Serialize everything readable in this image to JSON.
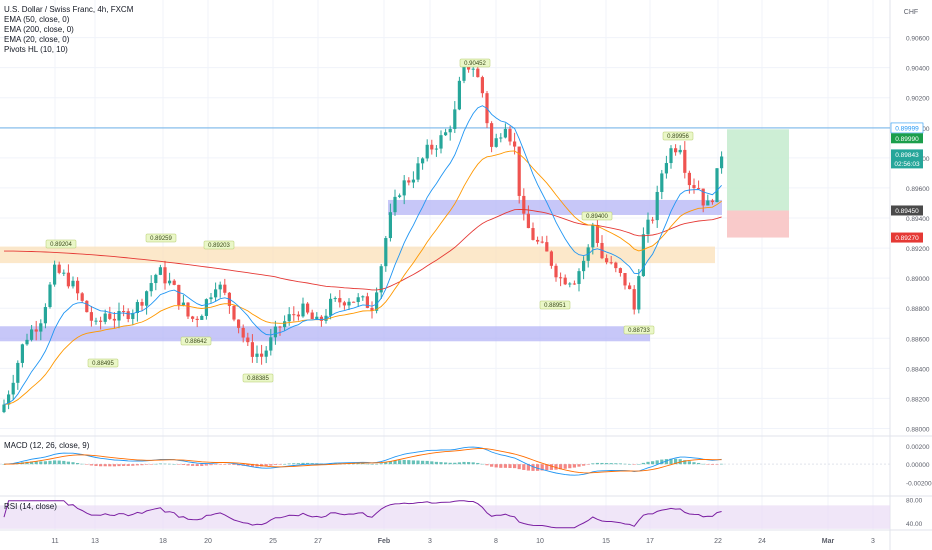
{
  "header": {
    "symbol": "U.S. Dollar / Swiss Franc, 4h, FXCM",
    "currency": "CHF",
    "indicators": [
      "EMA (50, close, 0)",
      "EMA (200, close, 0)",
      "EMA (20, close, 0)",
      "Pivots HL (10, 10)"
    ]
  },
  "macd_label": "MACD (12, 26, close, 9)",
  "rsi_label": "RSI (14, close)",
  "colors": {
    "up": "#26a69a",
    "down": "#ef5350",
    "ema20": "#2196f3",
    "ema50": "#ff9800",
    "ema200": "#e53935",
    "zone_blue": "#b4b4f5",
    "zone_orange": "#fbe0b8",
    "tp_zone": "#c8ecd0",
    "sl_zone": "#f8c4c4",
    "rsi_line": "#7b1fa2"
  },
  "chart_data": [
    {
      "type": "candlestick",
      "title": "U.S. Dollar / Swiss Franc, 4h, FXCM",
      "y_axis": {
        "unit": "CHF",
        "ylim": [
          0.8795,
          0.9085
        ],
        "scale": "linear",
        "ticks": [
          "0.90600",
          "0.90400",
          "0.90200",
          "0.90000",
          "0.89800",
          "0.89600",
          "0.89400",
          "0.89200",
          "0.89000",
          "0.88800",
          "0.88600",
          "0.88400",
          "0.88200",
          "0.88000"
        ]
      },
      "x_axis": {
        "ticks": [
          "11",
          "13",
          "18",
          "20",
          "25",
          "27",
          "Feb",
          "3",
          "8",
          "10",
          "15",
          "17",
          "22",
          "24",
          "Mar",
          "3"
        ]
      },
      "grid": true,
      "price_labels": [
        {
          "text": "0.89999",
          "kind": "horizontal-line"
        },
        {
          "text": "0.89990",
          "kind": "take-profit"
        },
        {
          "text": "0.89843",
          "kind": "last-price"
        },
        {
          "text": "02:56:03",
          "kind": "countdown"
        },
        {
          "text": "0.89450",
          "kind": "entry"
        },
        {
          "text": "0.89270",
          "kind": "stop-loss"
        }
      ],
      "pivot_labels": [
        "0.89204",
        "0.89259",
        "0.89203",
        "0.88495",
        "0.88642",
        "0.88385",
        "0.90452",
        "0.88951",
        "0.89400",
        "0.88733",
        "0.89956"
      ],
      "zones": [
        {
          "type": "support",
          "from": 0.8858,
          "to": 0.8868,
          "color": "blue"
        },
        {
          "type": "resistance",
          "from": 0.891,
          "to": 0.8921,
          "color": "orange"
        },
        {
          "type": "support",
          "from": 0.8942,
          "to": 0.8952,
          "color": "blue"
        }
      ],
      "trade": {
        "entry": 0.8945,
        "take_profit": 0.8999,
        "stop_loss": 0.8927
      },
      "ema_series": [
        "EMA 20",
        "EMA 50",
        "EMA 200"
      ]
    },
    {
      "type": "bar",
      "title": "MACD (12, 26, close, 9)",
      "y_axis": {
        "ticks": [
          "0.00200",
          "0.00000",
          "-0.00200"
        ],
        "ylim": [
          -0.0035,
          0.0031
        ]
      }
    },
    {
      "type": "line",
      "title": "RSI (14, close)",
      "y_axis": {
        "ticks": [
          "80.00",
          "40.00"
        ],
        "ylim": [
          28,
          86
        ]
      },
      "band": [
        30,
        70
      ]
    }
  ]
}
